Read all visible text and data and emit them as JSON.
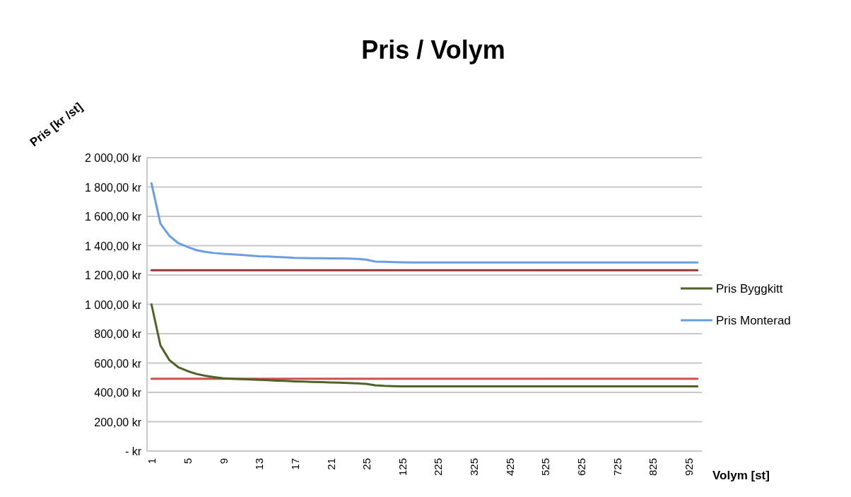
{
  "chart_data": {
    "type": "line",
    "title": "Pris / Volym",
    "xlabel": "Volym [st]",
    "ylabel": "Pris [kr /st]",
    "categories": [
      "1",
      null,
      null,
      null,
      "5",
      null,
      null,
      null,
      "9",
      null,
      null,
      null,
      "13",
      null,
      null,
      null,
      "17",
      null,
      null,
      null,
      "21",
      null,
      null,
      null,
      "25",
      null,
      null,
      null,
      "125",
      null,
      null,
      null,
      "225",
      null,
      null,
      null,
      "325",
      null,
      null,
      null,
      "425",
      null,
      null,
      null,
      "525",
      null,
      null,
      null,
      "625",
      null,
      null,
      null,
      "725",
      null,
      null,
      null,
      "825",
      null,
      null,
      null,
      "925",
      null
    ],
    "ylim": [
      0,
      2000
    ],
    "yticks": [
      {
        "value": 0,
        "label": "-  kr"
      },
      {
        "value": 200,
        "label": "200,00 kr"
      },
      {
        "value": 400,
        "label": "400,00 kr"
      },
      {
        "value": 600,
        "label": "600,00 kr"
      },
      {
        "value": 800,
        "label": "800,00 kr"
      },
      {
        "value": 1000,
        "label": "1 000,00 kr"
      },
      {
        "value": 1200,
        "label": "1 200,00 kr"
      },
      {
        "value": 1400,
        "label": "1 400,00 kr"
      },
      {
        "value": 1600,
        "label": "1 600,00 kr"
      },
      {
        "value": 1800,
        "label": "1 800,00 kr"
      },
      {
        "value": 2000,
        "label": "2 000,00 kr"
      }
    ],
    "grid": "y",
    "legend": "right",
    "marker": "none",
    "line_style": "solid",
    "series": [
      {
        "color": "#943634",
        "values": [
          1233,
          1233,
          1233,
          1233,
          1233,
          1233,
          1233,
          1233,
          1233,
          1233,
          1233,
          1233,
          1233,
          1233,
          1233,
          1233,
          1233,
          1233,
          1233,
          1233,
          1233,
          1233,
          1233,
          1233,
          1233,
          1233,
          1233,
          1233,
          1233,
          1233,
          1233,
          1233,
          1233,
          1233,
          1233,
          1233,
          1233,
          1233,
          1233,
          1233,
          1233,
          1233,
          1233,
          1233,
          1233,
          1233,
          1233,
          1233,
          1233,
          1233,
          1233,
          1233,
          1233,
          1233,
          1233,
          1233,
          1233,
          1233,
          1233,
          1233,
          1233,
          1233
        ]
      },
      {
        "color": "#d0504d",
        "values": [
          493,
          493,
          493,
          493,
          493,
          493,
          493,
          493,
          493,
          493,
          493,
          493,
          493,
          493,
          493,
          493,
          493,
          493,
          493,
          493,
          493,
          493,
          493,
          493,
          493,
          493,
          493,
          493,
          493,
          493,
          493,
          493,
          493,
          493,
          493,
          493,
          493,
          493,
          493,
          493,
          493,
          493,
          493,
          493,
          493,
          493,
          493,
          493,
          493,
          493,
          493,
          493,
          493,
          493,
          493,
          493,
          493,
          493,
          493,
          493,
          493,
          493
        ]
      },
      {
        "name": "Pris Byggkitt",
        "color": "#4f6228",
        "values": [
          1000,
          720,
          620,
          571,
          546,
          526,
          513,
          504,
          496,
          493,
          490,
          488,
          485,
          483,
          480,
          478,
          475,
          473,
          471,
          470,
          468,
          466,
          464,
          461,
          458,
          448,
          444,
          442,
          441,
          441,
          441,
          441,
          441,
          441,
          441,
          441,
          441,
          441,
          441,
          441,
          441,
          441,
          441,
          441,
          441,
          441,
          441,
          441,
          441,
          441,
          441,
          441,
          441,
          441,
          441,
          441,
          441,
          441,
          441,
          441,
          441,
          441
        ]
      },
      {
        "name": "Pris Monterad",
        "color": "#6a9ee0",
        "values": [
          1825,
          1550,
          1467,
          1417,
          1392,
          1370,
          1358,
          1350,
          1345,
          1341,
          1337,
          1333,
          1328,
          1326,
          1323,
          1320,
          1317,
          1316,
          1315,
          1314,
          1313,
          1313,
          1312,
          1310,
          1305,
          1292,
          1290,
          1288,
          1287,
          1286,
          1285,
          1285,
          1285,
          1285,
          1285,
          1285,
          1285,
          1285,
          1285,
          1285,
          1285,
          1285,
          1285,
          1285,
          1285,
          1285,
          1285,
          1285,
          1285,
          1285,
          1285,
          1285,
          1285,
          1285,
          1285,
          1285,
          1285,
          1285,
          1285,
          1285,
          1285,
          1285
        ]
      }
    ]
  }
}
